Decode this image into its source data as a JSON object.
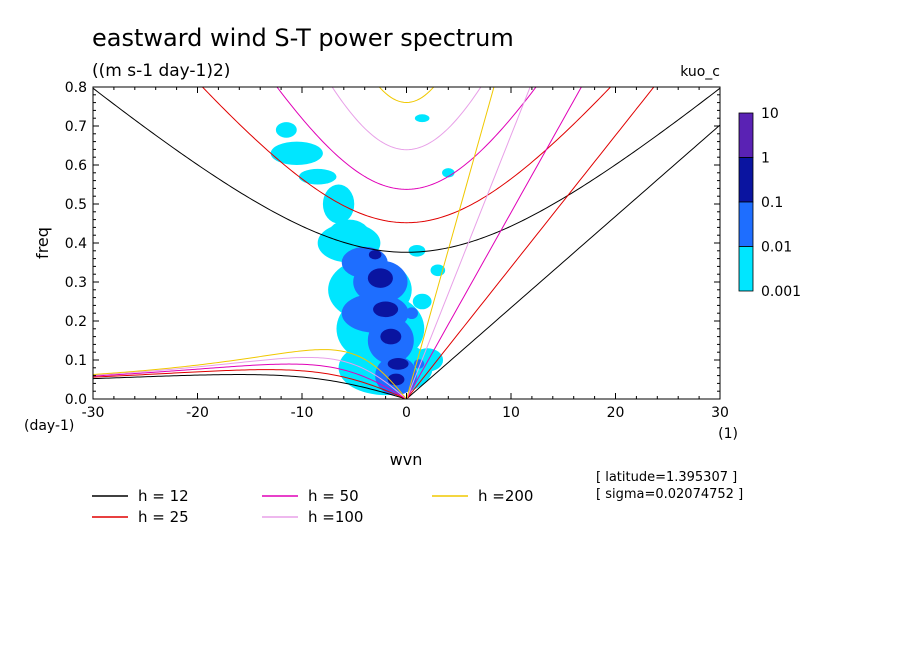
{
  "chart_data": {
    "type": "contour",
    "title": "eastward wind S-T power spectrum",
    "subtitle": "((m s-1 day-1)2)",
    "corner_label": "kuo_c",
    "xlabel": "wvn",
    "ylabel": "freq",
    "x_unit": "(1)",
    "y_unit": "(day-1)",
    "xlim": [
      -30,
      30
    ],
    "ylim": [
      0,
      0.8
    ],
    "x_ticks": [
      -30,
      -20,
      -10,
      0,
      10,
      20,
      30
    ],
    "x_tick_labels": [
      "-30",
      "-20",
      "-10",
      "0",
      "10",
      "20",
      "30"
    ],
    "y_ticks": [
      0,
      0.1,
      0.2,
      0.3,
      0.4,
      0.5,
      0.6,
      0.7,
      0.8
    ],
    "y_tick_labels": [
      "0.0",
      "0.1",
      "0.2",
      "0.3",
      "0.4",
      "0.5",
      "0.6",
      "0.7",
      "0.8"
    ],
    "colorbar": {
      "levels": [
        "10",
        "1",
        "0.1",
        "0.01",
        "0.001"
      ],
      "colors": [
        "#5a22b4",
        "#0a14a0",
        "#1e6eff",
        "#00e6ff"
      ]
    },
    "annotations": [
      "[ latitude=1.395307 ]",
      "[ sigma=0.02074752 ]"
    ],
    "legend": [
      {
        "label": "h = 12",
        "color": "#000000"
      },
      {
        "label": "h = 25",
        "color": "#e00000"
      },
      {
        "label": "h = 50",
        "color": "#e000b8"
      },
      {
        "label": "h =100",
        "color": "#e8a0e8"
      },
      {
        "label": "h =200",
        "color": "#f0c800"
      }
    ],
    "dispersion_h": [
      12,
      25,
      50,
      100,
      200
    ],
    "blobs": [
      {
        "x": -2.5,
        "y": 0.3,
        "rx": 2.6,
        "ry": 0.055,
        "level": 1
      },
      {
        "x": -3.0,
        "y": 0.22,
        "rx": 3.2,
        "ry": 0.05,
        "level": 1
      },
      {
        "x": -4.0,
        "y": 0.35,
        "rx": 2.2,
        "ry": 0.04,
        "level": 1
      },
      {
        "x": -1.5,
        "y": 0.15,
        "rx": 2.2,
        "ry": 0.06,
        "level": 1
      },
      {
        "x": -1.0,
        "y": 0.06,
        "rx": 2.0,
        "ry": 0.05,
        "level": 1
      },
      {
        "x": -5.5,
        "y": 0.42,
        "rx": 2.0,
        "ry": 0.04,
        "level": 0
      },
      {
        "x": -6.5,
        "y": 0.5,
        "rx": 1.5,
        "ry": 0.05,
        "level": 0
      },
      {
        "x": -5.5,
        "y": 0.4,
        "rx": 3.0,
        "ry": 0.05,
        "level": 0
      },
      {
        "x": -3.5,
        "y": 0.28,
        "rx": 4.0,
        "ry": 0.08,
        "level": 0
      },
      {
        "x": -2.5,
        "y": 0.18,
        "rx": 4.2,
        "ry": 0.09,
        "level": 0
      },
      {
        "x": -2.0,
        "y": 0.08,
        "rx": 4.5,
        "ry": 0.07,
        "level": 0
      },
      {
        "x": -10.5,
        "y": 0.63,
        "rx": 2.5,
        "ry": 0.03,
        "level": 0
      },
      {
        "x": -8.5,
        "y": 0.57,
        "rx": 1.8,
        "ry": 0.02,
        "level": 0
      },
      {
        "x": -11.5,
        "y": 0.69,
        "rx": 1.0,
        "ry": 0.02,
        "level": 0
      },
      {
        "x": -2.5,
        "y": 0.31,
        "rx": 1.2,
        "ry": 0.025,
        "level": 2
      },
      {
        "x": -2.0,
        "y": 0.23,
        "rx": 1.2,
        "ry": 0.02,
        "level": 2
      },
      {
        "x": -1.5,
        "y": 0.16,
        "rx": 1.0,
        "ry": 0.02,
        "level": 2
      },
      {
        "x": -0.8,
        "y": 0.09,
        "rx": 1.0,
        "ry": 0.015,
        "level": 2
      },
      {
        "x": -1.0,
        "y": 0.05,
        "rx": 0.8,
        "ry": 0.015,
        "level": 2
      },
      {
        "x": -3.0,
        "y": 0.37,
        "rx": 0.6,
        "ry": 0.012,
        "level": 2
      },
      {
        "x": 1.5,
        "y": 0.72,
        "rx": 0.7,
        "ry": 0.01,
        "level": 0
      },
      {
        "x": 1.0,
        "y": 0.38,
        "rx": 0.8,
        "ry": 0.015,
        "level": 0
      },
      {
        "x": 3.0,
        "y": 0.33,
        "rx": 0.7,
        "ry": 0.015,
        "level": 0
      },
      {
        "x": 1.5,
        "y": 0.25,
        "rx": 0.9,
        "ry": 0.02,
        "level": 0
      },
      {
        "x": 2.0,
        "y": 0.1,
        "rx": 1.5,
        "ry": 0.03,
        "level": 0
      },
      {
        "x": 4.0,
        "y": 0.58,
        "rx": 0.6,
        "ry": 0.012,
        "level": 0
      },
      {
        "x": 1.2,
        "y": 0.09,
        "rx": 0.5,
        "ry": 0.012,
        "level": 1
      },
      {
        "x": 0.5,
        "y": 0.22,
        "rx": 0.6,
        "ry": 0.015,
        "level": 1
      }
    ]
  }
}
